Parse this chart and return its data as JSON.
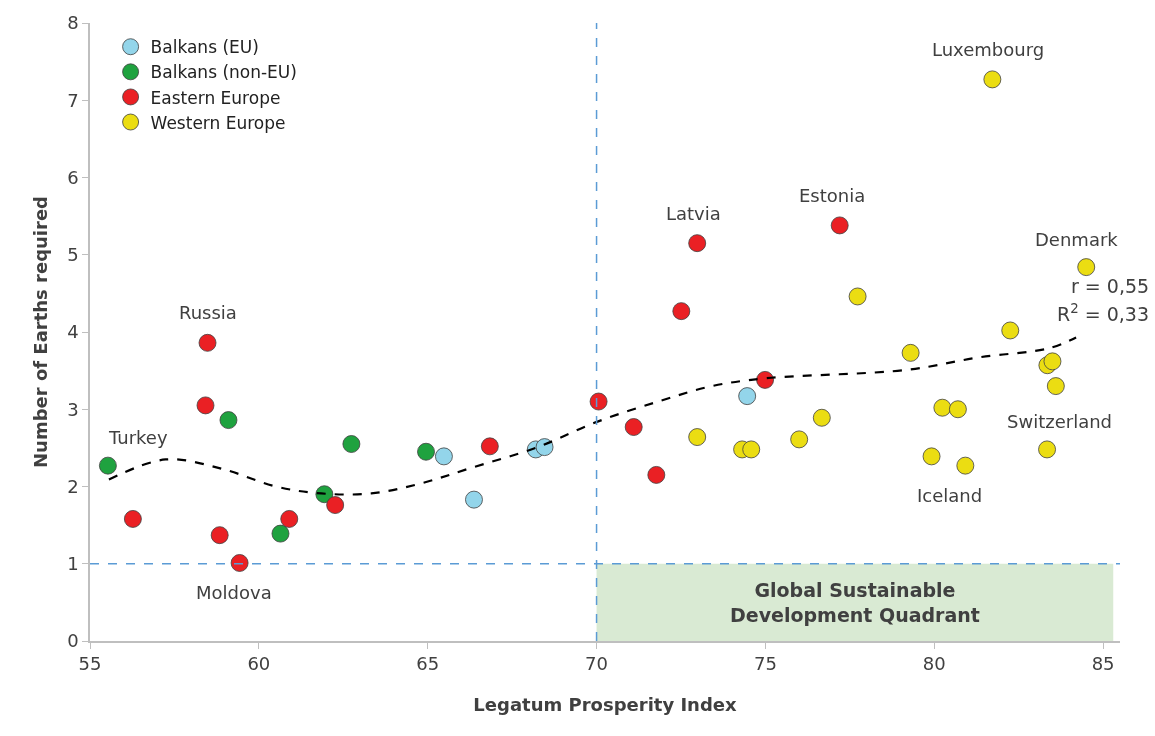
{
  "chart_data": {
    "type": "scatter",
    "xlabel": "Legatum Prosperity Index",
    "ylabel": "Number of Earths required",
    "xlim": [
      55,
      85.5
    ],
    "xticks": [
      55,
      60,
      65,
      70,
      75,
      80,
      85
    ],
    "ylim": [
      0,
      8
    ],
    "yticks": [
      0,
      1,
      2,
      3,
      4,
      5,
      6,
      7,
      8
    ],
    "grid": false,
    "legend": "top left",
    "marker": "circle",
    "series": [
      {
        "name": "Balkans (EU)",
        "color": "#93d5ea",
        "x": [
          65.48,
          66.37,
          68.2,
          68.46,
          74.46
        ],
        "values": [
          2.39,
          1.83,
          2.48,
          2.51,
          3.17
        ]
      },
      {
        "name": "Balkans (non-EU)",
        "color": "#1fa23f",
        "x": [
          55.53,
          59.1,
          61.94,
          60.64,
          62.74,
          64.95
        ],
        "values": [
          2.27,
          2.86,
          1.9,
          1.39,
          2.55,
          2.45
        ]
      },
      {
        "name": "Eastern Europe",
        "color": "#ea2024",
        "x": [
          58.48,
          58.42,
          56.27,
          58.84,
          59.43,
          60.9,
          62.26,
          66.84,
          70.06,
          71.1,
          71.77,
          72.51,
          72.98,
          77.2,
          74.99
        ],
        "values": [
          3.86,
          3.05,
          1.58,
          1.37,
          1.01,
          1.58,
          1.76,
          2.52,
          3.1,
          2.77,
          2.15,
          4.27,
          5.15,
          5.38,
          3.38
        ]
      },
      {
        "name": "Western Europe",
        "color": "#ebdd12",
        "x": [
          81.72,
          84.5,
          77.73,
          79.3,
          82.25,
          83.35,
          83.5,
          83.6,
          72.98,
          74.31,
          74.58,
          76.0,
          76.67,
          80.24,
          80.7,
          79.92,
          80.92,
          83.34
        ],
        "values": [
          7.27,
          4.84,
          4.46,
          3.73,
          4.02,
          3.57,
          3.62,
          3.3,
          2.64,
          2.48,
          2.48,
          2.61,
          2.89,
          3.02,
          3.0,
          2.39,
          2.27,
          2.48
        ]
      },
      {
        "type": "line",
        "color": "#000000",
        "line_style": "dashed",
        "marker": "none",
        "x": [
          55.56,
          57.24,
          58.9,
          60.5,
          61.85,
          63.33,
          64.8,
          66.28,
          68.26,
          70.03,
          71.83,
          73.42,
          75.0,
          79.2,
          81.3,
          83.4,
          84.2
        ],
        "values": [
          2.09,
          2.35,
          2.23,
          2.0,
          1.91,
          1.91,
          2.04,
          2.24,
          2.51,
          2.84,
          3.1,
          3.3,
          3.4,
          3.51,
          3.67,
          3.79,
          3.93
        ]
      }
    ],
    "ref_lines": [
      {
        "axis": "x",
        "value": 70,
        "color": "#5b9bd5",
        "line_style": "dashed"
      },
      {
        "axis": "y",
        "value": 1,
        "color": "#5b9bd5",
        "line_style": "dashed"
      }
    ],
    "bands": [
      {
        "axis": "x",
        "from": 70,
        "to": 85.3,
        "label": "Global Sustainable Development Quadrant",
        "color": "#d9ead3"
      }
    ],
    "annotations": [
      {
        "text": "Turkey",
        "x": 55.53,
        "y": 2.27
      },
      {
        "text": "Russia",
        "x": 58.48,
        "y": 3.86
      },
      {
        "text": "Moldova",
        "x": 59.43,
        "y": 1.01
      },
      {
        "text": "Latvia",
        "x": 72.98,
        "y": 5.15
      },
      {
        "text": "Estonia",
        "x": 77.2,
        "y": 5.38
      },
      {
        "text": "Luxembourg",
        "x": 81.72,
        "y": 7.27
      },
      {
        "text": "Denmark",
        "x": 84.5,
        "y": 4.84
      },
      {
        "text": "Switzerland",
        "x": 83.34,
        "y": 2.48
      },
      {
        "text": "Iceland",
        "x": 80.92,
        "y": 2.27
      },
      "r = 0,55",
      "R$^{2}$ = 0,33"
    ]
  }
}
